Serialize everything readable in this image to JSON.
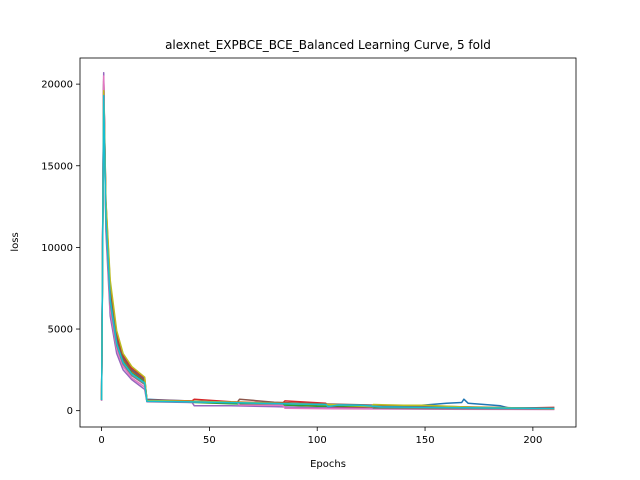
{
  "chart_data": {
    "type": "line",
    "title": "alexnet_EXPBCE_BCE_Balanced Learning Curve, 5 fold",
    "xlabel": "Epochs",
    "ylabel": "loss",
    "xlim": [
      -10,
      220
    ],
    "ylim": [
      -1000,
      21600
    ],
    "xticks": [
      0,
      50,
      100,
      150,
      200
    ],
    "yticks": [
      0,
      5000,
      10000,
      15000,
      20000
    ],
    "grid": false,
    "legend": "none",
    "series": [
      {
        "color": "#1f77b4",
        "values": [
          [
            0,
            700
          ],
          [
            1,
            20000
          ],
          [
            2,
            12500
          ],
          [
            4,
            7500
          ],
          [
            7,
            4600
          ],
          [
            10,
            3300
          ],
          [
            14,
            2500
          ],
          [
            20,
            1900
          ],
          [
            21,
            700
          ],
          [
            30,
            650
          ],
          [
            40,
            600
          ],
          [
            60,
            500
          ],
          [
            80,
            420
          ],
          [
            100,
            300
          ],
          [
            120,
            250
          ],
          [
            140,
            250
          ],
          [
            150,
            350
          ],
          [
            160,
            450
          ],
          [
            167,
            500
          ],
          [
            168,
            700
          ],
          [
            170,
            450
          ],
          [
            185,
            300
          ],
          [
            190,
            120
          ],
          [
            200,
            100
          ],
          [
            210,
            100
          ]
        ]
      },
      {
        "color": "#ff7f0e",
        "values": [
          [
            0,
            700
          ],
          [
            1,
            19800
          ],
          [
            2,
            12000
          ],
          [
            4,
            7000
          ],
          [
            7,
            4300
          ],
          [
            10,
            3100
          ],
          [
            14,
            2400
          ],
          [
            20,
            1800
          ],
          [
            21,
            650
          ],
          [
            40,
            550
          ],
          [
            60,
            450
          ],
          [
            80,
            380
          ],
          [
            100,
            280
          ],
          [
            130,
            220
          ],
          [
            160,
            180
          ],
          [
            190,
            150
          ],
          [
            210,
            120
          ]
        ]
      },
      {
        "color": "#2ca02c",
        "values": [
          [
            0,
            650
          ],
          [
            1,
            19500
          ],
          [
            2,
            11800
          ],
          [
            4,
            6900
          ],
          [
            7,
            4200
          ],
          [
            10,
            3000
          ],
          [
            14,
            2300
          ],
          [
            20,
            1750
          ],
          [
            21,
            600
          ],
          [
            40,
            520
          ],
          [
            60,
            430
          ],
          [
            80,
            360
          ],
          [
            100,
            270
          ],
          [
            130,
            200
          ],
          [
            160,
            170
          ],
          [
            190,
            140
          ],
          [
            210,
            110
          ]
        ]
      },
      {
        "color": "#d62728",
        "values": [
          [
            0,
            700
          ],
          [
            1,
            20300
          ],
          [
            2,
            12800
          ],
          [
            4,
            7700
          ],
          [
            7,
            4700
          ],
          [
            10,
            3400
          ],
          [
            14,
            2600
          ],
          [
            20,
            2000
          ],
          [
            21,
            650
          ],
          [
            42,
            600
          ],
          [
            43,
            700
          ],
          [
            60,
            550
          ],
          [
            84,
            450
          ],
          [
            85,
            600
          ],
          [
            104,
            450
          ],
          [
            105,
            200
          ],
          [
            130,
            150
          ],
          [
            160,
            150
          ],
          [
            190,
            150
          ],
          [
            210,
            200
          ]
        ]
      },
      {
        "color": "#9467bd",
        "values": [
          [
            0,
            650
          ],
          [
            1,
            20700
          ],
          [
            2,
            11000
          ],
          [
            4,
            5800
          ],
          [
            7,
            3500
          ],
          [
            10,
            2500
          ],
          [
            14,
            1900
          ],
          [
            20,
            1300
          ],
          [
            21,
            550
          ],
          [
            42,
            500
          ],
          [
            43,
            300
          ],
          [
            60,
            300
          ],
          [
            80,
            250
          ],
          [
            100,
            180
          ],
          [
            130,
            130
          ],
          [
            160,
            110
          ],
          [
            190,
            100
          ],
          [
            210,
            90
          ]
        ]
      },
      {
        "color": "#8c564b",
        "values": [
          [
            0,
            650
          ],
          [
            1,
            20200
          ],
          [
            2,
            12300
          ],
          [
            4,
            7200
          ],
          [
            7,
            4400
          ],
          [
            10,
            3200
          ],
          [
            14,
            2450
          ],
          [
            20,
            1850
          ],
          [
            21,
            600
          ],
          [
            42,
            560
          ],
          [
            63,
            520
          ],
          [
            64,
            700
          ],
          [
            80,
            520
          ],
          [
            100,
            420
          ],
          [
            130,
            330
          ],
          [
            150,
            280
          ],
          [
            170,
            230
          ],
          [
            190,
            180
          ],
          [
            210,
            160
          ]
        ]
      },
      {
        "color": "#e377c2",
        "values": [
          [
            0,
            600
          ],
          [
            1,
            20500
          ],
          [
            2,
            11500
          ],
          [
            4,
            6200
          ],
          [
            7,
            3800
          ],
          [
            10,
            2700
          ],
          [
            14,
            2000
          ],
          [
            20,
            1450
          ],
          [
            21,
            580
          ],
          [
            42,
            540
          ],
          [
            63,
            500
          ],
          [
            64,
            350
          ],
          [
            84,
            320
          ],
          [
            85,
            150
          ],
          [
            105,
            120
          ],
          [
            130,
            100
          ],
          [
            160,
            90
          ],
          [
            190,
            80
          ],
          [
            210,
            70
          ]
        ]
      },
      {
        "color": "#7f7f7f",
        "values": [
          [
            0,
            650
          ],
          [
            1,
            19000
          ],
          [
            2,
            11600
          ],
          [
            4,
            6600
          ],
          [
            7,
            4000
          ],
          [
            10,
            2850
          ],
          [
            14,
            2150
          ],
          [
            20,
            1600
          ],
          [
            21,
            570
          ],
          [
            42,
            530
          ],
          [
            63,
            480
          ],
          [
            84,
            430
          ],
          [
            105,
            380
          ],
          [
            125,
            330
          ],
          [
            126,
            150
          ],
          [
            150,
            130
          ],
          [
            170,
            120
          ],
          [
            190,
            110
          ],
          [
            210,
            100
          ]
        ]
      },
      {
        "color": "#bcbd22",
        "values": [
          [
            0,
            700
          ],
          [
            1,
            19600
          ],
          [
            2,
            12900
          ],
          [
            4,
            8000
          ],
          [
            7,
            4900
          ],
          [
            10,
            3500
          ],
          [
            14,
            2700
          ],
          [
            20,
            2050
          ],
          [
            21,
            620
          ],
          [
            42,
            580
          ],
          [
            63,
            520
          ],
          [
            84,
            440
          ],
          [
            105,
            380
          ],
          [
            125,
            250
          ],
          [
            126,
            380
          ],
          [
            140,
            330
          ],
          [
            150,
            330
          ],
          [
            170,
            220
          ],
          [
            190,
            170
          ],
          [
            210,
            130
          ]
        ]
      },
      {
        "color": "#17becf",
        "values": [
          [
            0,
            650
          ],
          [
            1,
            19300
          ],
          [
            2,
            11900
          ],
          [
            4,
            6800
          ],
          [
            7,
            4100
          ],
          [
            10,
            2950
          ],
          [
            14,
            2250
          ],
          [
            20,
            1700
          ],
          [
            21,
            580
          ],
          [
            42,
            540
          ],
          [
            63,
            490
          ],
          [
            84,
            420
          ],
          [
            104,
            380
          ],
          [
            105,
            250
          ],
          [
            110,
            350
          ],
          [
            120,
            330
          ],
          [
            130,
            230
          ],
          [
            150,
            200
          ],
          [
            170,
            180
          ],
          [
            190,
            160
          ],
          [
            210,
            140
          ]
        ]
      }
    ]
  }
}
